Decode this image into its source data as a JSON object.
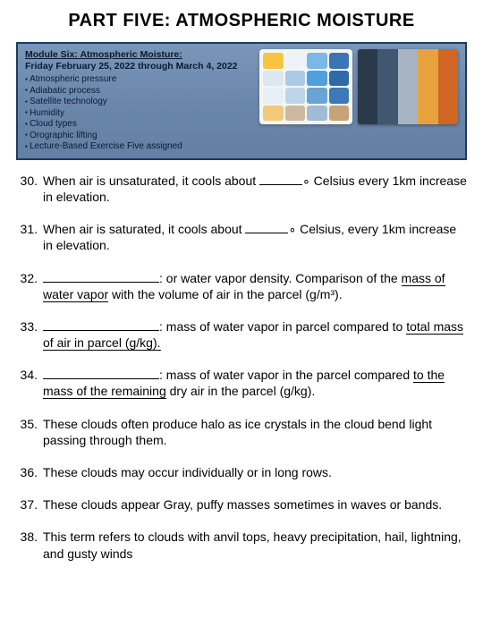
{
  "title": "PART FIVE: ATMOSPHERIC MOISTURE",
  "banner": {
    "module_title": "Module Six: Atmospheric Moisture:",
    "date_range": "Friday February 25, 2022 through March 4, 2022",
    "topics": [
      "Atmospheric pressure",
      "Adiabatic process",
      "Satellite technology",
      "Humidity",
      "Cloud types",
      "Orographic lifting",
      "Lecture-Based Exercise Five assigned"
    ],
    "bg_color": "#6f8bae",
    "border_color": "#1e3a5f",
    "text_color": "#0a1a33",
    "icon_grid": {
      "bg": "#f5f5f0",
      "colors": [
        "#f5c542",
        "#eef3f9",
        "#7ab8e8",
        "#3b75b5",
        "#dce7f2",
        "#a9cbe8",
        "#4fa0df",
        "#2f6aa8",
        "#e8eef5",
        "#bcd5ea",
        "#6aa4d6",
        "#3d79b8",
        "#f2c97a",
        "#cbb9a0",
        "#9fbcd4",
        "#c6a477"
      ]
    },
    "photo_stripes": [
      "#2b3a4a",
      "#3f5770",
      "#a7b4c1",
      "#e8a23d",
      "#d06624"
    ]
  },
  "questions": [
    {
      "num": "30.",
      "pre": "When air is unsaturated, it cools about ",
      "blank": "med",
      "post": "∘ Celsius every 1km increase in elevation."
    },
    {
      "num": "31.",
      "pre": "When air is saturated, it cools about ",
      "blank": "med",
      "post": "∘ Celsius, every 1km increase in elevation."
    },
    {
      "num": "32.",
      "blank_first": true,
      "post": ": or water vapor density.  Comparison of the ",
      "under": "mass of water vapor",
      "tail": " with the volume of air in the parcel (g/m³)."
    },
    {
      "num": "33.",
      "blank_first": true,
      "post": ": mass of water vapor in parcel compared to ",
      "under": "total mass of air in parcel (g/kg).",
      "tail": ""
    },
    {
      "num": "34.",
      "blank_first": true,
      "post": ": mass of water vapor in the parcel compared ",
      "under": "to the mass of the remaining",
      "tail": " dry air in the parcel (g/kg)."
    },
    {
      "num": "35.",
      "text": "These clouds often produce halo as ice crystals in the cloud bend light passing through them."
    },
    {
      "num": "36.",
      "text": "These clouds may occur individually or in long rows."
    },
    {
      "num": "37.",
      "text": "These clouds appear Gray, puffy masses sometimes in waves or bands."
    },
    {
      "num": "38.",
      "text": "This term refers to clouds with anvil tops, heavy precipitation, hail, lightning, and gusty winds"
    }
  ]
}
